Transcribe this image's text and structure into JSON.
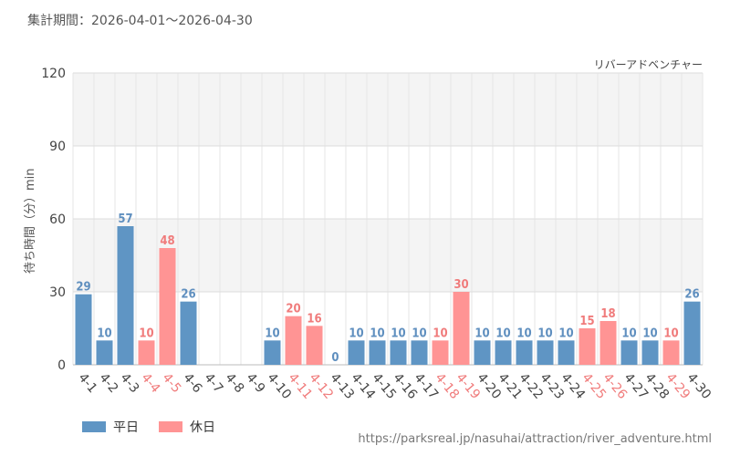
{
  "period_text": "集計期間：2026-04-01～2026-04-30",
  "attraction_name": "リバーアドベンチャー",
  "source_url": "https://parksreal.jp/nasuhai/attraction/river_adventure.html",
  "colors": {
    "weekday": "#5f95c4",
    "holiday": "#ff9494",
    "weekday_label": "#5f8fbf",
    "holiday_label": "#f07b7b"
  },
  "chart_data": {
    "type": "bar",
    "ylabel": "待ち時間（分）min",
    "ylim": [
      0,
      120
    ],
    "yticks": [
      0,
      30,
      60,
      90,
      120
    ],
    "grid": true,
    "legend_position": "bottom-left",
    "categories": [
      "4-1",
      "4-2",
      "4-3",
      "4-4",
      "4-5",
      "4-6",
      "4-7",
      "4-8",
      "4-9",
      "4-10",
      "4-11",
      "4-12",
      "4-13",
      "4-14",
      "4-15",
      "4-16",
      "4-17",
      "4-18",
      "4-19",
      "4-20",
      "4-21",
      "4-22",
      "4-23",
      "4-24",
      "4-25",
      "4-26",
      "4-27",
      "4-28",
      "4-29",
      "4-30"
    ],
    "values": [
      29,
      10,
      57,
      10,
      48,
      26,
      null,
      null,
      null,
      10,
      20,
      16,
      0,
      10,
      10,
      10,
      10,
      10,
      30,
      10,
      10,
      10,
      10,
      10,
      15,
      18,
      10,
      10,
      10,
      26
    ],
    "day_type": [
      "weekday",
      "weekday",
      "weekday",
      "holiday",
      "holiday",
      "weekday",
      "weekday",
      "weekday",
      "weekday",
      "weekday",
      "holiday",
      "holiday",
      "weekday",
      "weekday",
      "weekday",
      "weekday",
      "weekday",
      "holiday",
      "holiday",
      "weekday",
      "weekday",
      "weekday",
      "weekday",
      "weekday",
      "holiday",
      "holiday",
      "weekday",
      "weekday",
      "holiday",
      "weekday"
    ],
    "series": [
      {
        "name": "平日",
        "key": "weekday"
      },
      {
        "name": "休日",
        "key": "holiday"
      }
    ]
  }
}
